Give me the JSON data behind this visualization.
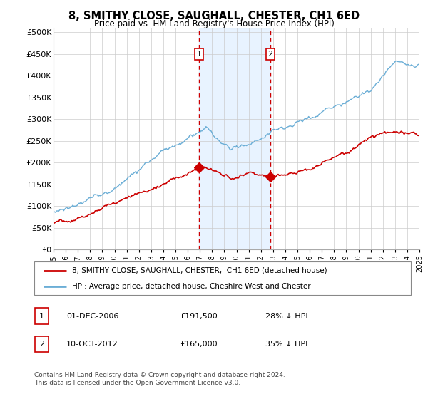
{
  "title": "8, SMITHY CLOSE, SAUGHALL, CHESTER, CH1 6ED",
  "subtitle": "Price paid vs. HM Land Registry's House Price Index (HPI)",
  "yticks": [
    0,
    50000,
    100000,
    150000,
    200000,
    250000,
    300000,
    350000,
    400000,
    450000,
    500000
  ],
  "ytick_labels": [
    "£0",
    "£50K",
    "£100K",
    "£150K",
    "£200K",
    "£250K",
    "£300K",
    "£350K",
    "£400K",
    "£450K",
    "£500K"
  ],
  "ylim": [
    0,
    510000
  ],
  "hpi_color": "#6baed6",
  "price_color": "#cc0000",
  "sale1_date": 2006.92,
  "sale1_price": 191500,
  "sale2_date": 2012.78,
  "sale2_price": 165000,
  "legend_line1": "8, SMITHY CLOSE, SAUGHALL, CHESTER,  CH1 6ED (detached house)",
  "legend_line2": "HPI: Average price, detached house, Cheshire West and Chester",
  "footnote1": "Contains HM Land Registry data © Crown copyright and database right 2024.",
  "footnote2": "This data is licensed under the Open Government Licence v3.0.",
  "xstart": 1995,
  "xend": 2025
}
